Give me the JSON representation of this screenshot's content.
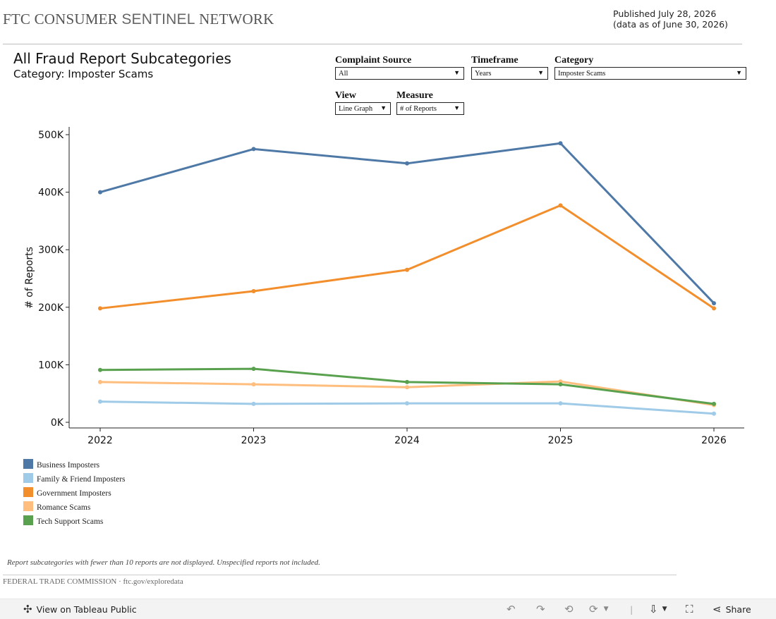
{
  "header": {
    "brand_a": "FTC CONSUMER",
    "brand_b": "SENTINEL",
    "brand_c": "NETWORK",
    "published": "Published July 28, 2026",
    "data_as_of": "(data as of June 30, 2026)"
  },
  "title": "All Fraud Report Subcategories",
  "subtitle": "Category: Imposter Scams",
  "filters": {
    "complaint_source": {
      "label": "Complaint Source",
      "value": "All"
    },
    "timeframe": {
      "label": "Timeframe",
      "value": "Years"
    },
    "category": {
      "label": "Category",
      "value": "Imposter Scams"
    },
    "view": {
      "label": "View",
      "value": "Line Graph"
    },
    "measure": {
      "label": "Measure",
      "value": "# of Reports"
    }
  },
  "chart_data": {
    "type": "line",
    "title": "",
    "xlabel": "",
    "ylabel": "# of Reports",
    "x": [
      "2022",
      "2023",
      "2024",
      "2025",
      "2026"
    ],
    "ylim": [
      0,
      500000
    ],
    "yticks": [
      0,
      100000,
      200000,
      300000,
      400000,
      500000
    ],
    "ytick_labels": [
      "0K",
      "100K",
      "200K",
      "300K",
      "400K",
      "500K"
    ],
    "grid": false,
    "legend_position": "bottom-left",
    "series": [
      {
        "name": "Business Imposters",
        "color": "#4e79a7",
        "values": [
          400000,
          475000,
          450000,
          485000,
          207000
        ]
      },
      {
        "name": "Family & Friend Imposters",
        "color": "#a0cbe8",
        "values": [
          36000,
          32000,
          33000,
          33000,
          15000
        ]
      },
      {
        "name": "Government Imposters",
        "color": "#f28e2b",
        "values": [
          198000,
          228000,
          265000,
          377000,
          198000
        ]
      },
      {
        "name": "Romance Scams",
        "color": "#ffbe7d",
        "values": [
          70000,
          66000,
          61000,
          71000,
          30000
        ]
      },
      {
        "name": "Tech Support Scams",
        "color": "#59a14f",
        "values": [
          91000,
          93000,
          70000,
          66000,
          32000
        ]
      }
    ]
  },
  "notes": {
    "disclaimer": "Report subcategories with fewer than 10 reports are not displayed. Unspecified reports not included.",
    "footer": "FEDERAL TRADE COMMISSION · ftc.gov/exploredata"
  },
  "toolbar": {
    "view_on_tableau": "View on Tableau Public",
    "share": "Share"
  },
  "icons": {
    "tableau": "tableau-logo-icon",
    "undo": "undo-icon",
    "redo": "redo-icon",
    "revert": "revert-icon",
    "refresh": "refresh-icon",
    "download": "download-icon",
    "fullscreen": "fullscreen-icon",
    "share": "share-icon"
  }
}
